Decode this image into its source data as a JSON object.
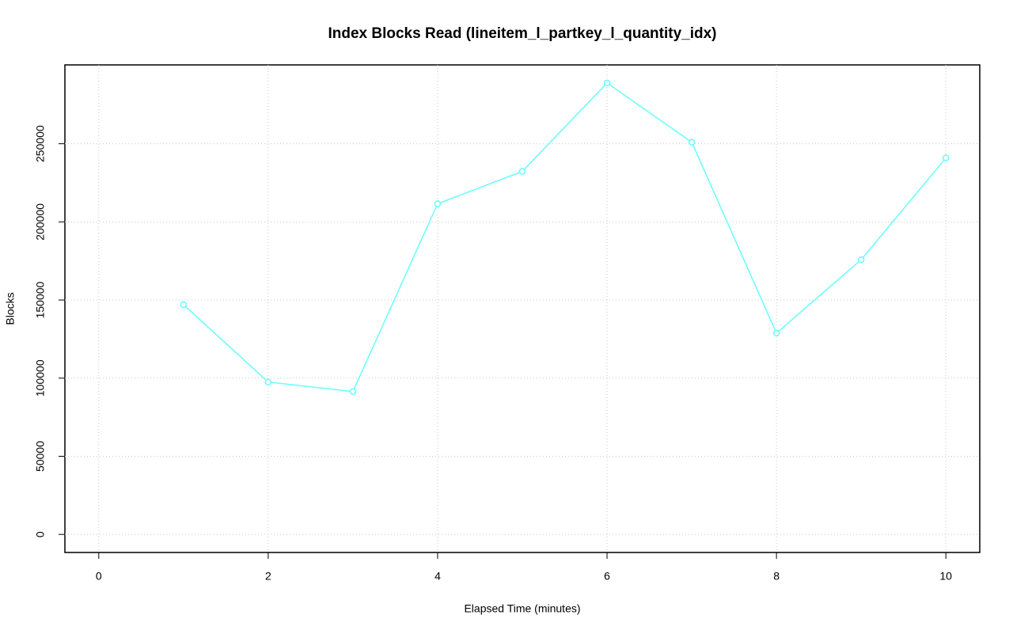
{
  "chart_data": {
    "type": "line",
    "title": "Index Blocks Read (lineitem_l_partkey_l_quantity_idx)",
    "x_label": "Elapsed Time (minutes)",
    "y_label": "Blocks",
    "x": [
      1,
      2,
      3,
      4,
      5,
      6,
      7,
      8,
      9,
      10
    ],
    "series": [
      {
        "color": "#66ffff",
        "values": [
          147000,
          97500,
          91400,
          211600,
          232300,
          288900,
          251000,
          128800,
          175800,
          240900
        ]
      }
    ],
    "xlim": [
      -0.4,
      10.4
    ],
    "xticks": [
      0,
      2,
      4,
      6,
      8,
      10
    ],
    "ylim": [
      -11556,
      300456
    ],
    "yticks": [
      0,
      50000,
      100000,
      150000,
      200000,
      250000
    ],
    "grid": true
  }
}
